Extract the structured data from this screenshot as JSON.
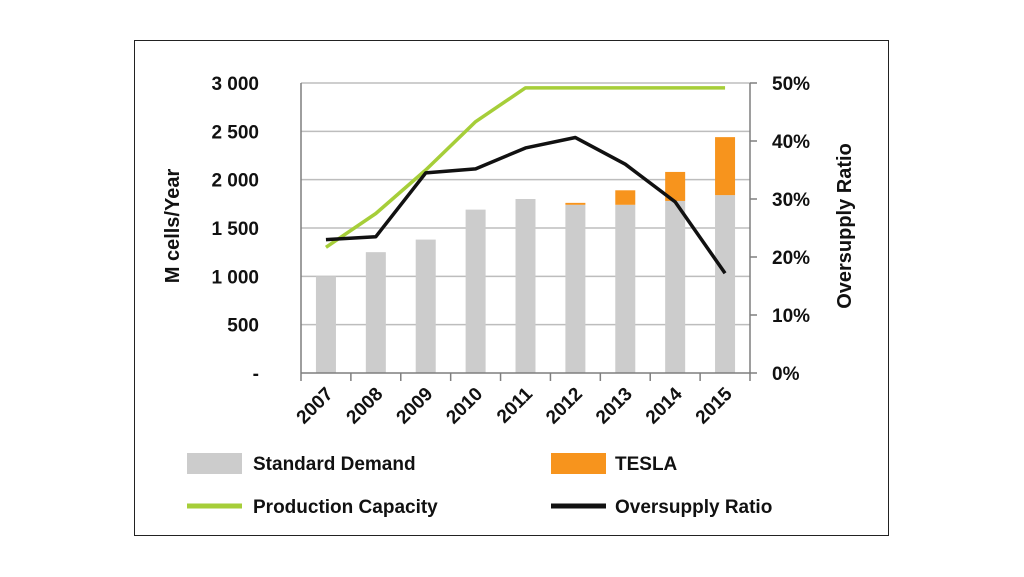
{
  "chart_data": {
    "type": "bar",
    "categories": [
      "2007",
      "2008",
      "2009",
      "2010",
      "2011",
      "2012",
      "2013",
      "2014",
      "2015"
    ],
    "series": [
      {
        "name": "Standard Demand",
        "kind": "bar",
        "stack": "demand",
        "axis": "left",
        "color": "#cccccc",
        "values": [
          1000,
          1250,
          1380,
          1690,
          1800,
          1740,
          1740,
          1780,
          1840
        ]
      },
      {
        "name": "TESLA",
        "kind": "bar",
        "stack": "demand",
        "axis": "left",
        "color": "#f7941d",
        "values": [
          0,
          0,
          0,
          0,
          0,
          20,
          150,
          300,
          600
        ]
      },
      {
        "name": "Production Capacity",
        "kind": "line",
        "axis": "left",
        "color": "#a6ce39",
        "values": [
          1300,
          1650,
          2100,
          2600,
          2950,
          2950,
          2950,
          2950,
          2950
        ]
      },
      {
        "name": "Oversupply Ratio",
        "kind": "line",
        "axis": "right",
        "color": "#111111",
        "values": [
          23,
          23.5,
          34.5,
          35.2,
          38.8,
          40.6,
          36,
          29.5,
          17.2
        ]
      }
    ],
    "ylabel": "M cells/Year",
    "y2label": "Oversupply Ratio",
    "ylim": [
      0,
      3000
    ],
    "y2lim": [
      0,
      50
    ],
    "yticks": [
      "-",
      "500",
      "1 000",
      "1 500",
      "2 000",
      "2 500",
      "3 000"
    ],
    "y2ticks": [
      "0%",
      "10%",
      "20%",
      "30%",
      "40%",
      "50%"
    ],
    "grid": true,
    "legend_position": "bottom"
  }
}
